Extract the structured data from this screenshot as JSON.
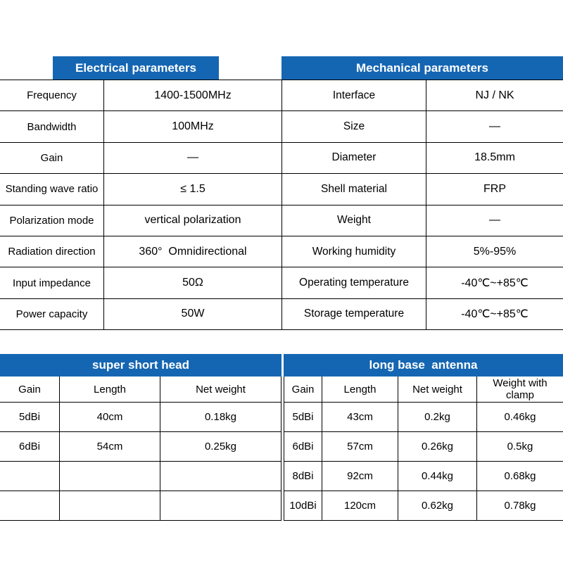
{
  "colors": {
    "header_bg": "#1566b2",
    "header_text": "#ffffff",
    "border": "#000000"
  },
  "electrical": {
    "title": "Electrical parameters",
    "rows": [
      {
        "label": "Frequency",
        "value": "1400-1500MHz"
      },
      {
        "label": "Bandwidth",
        "value": "100MHz"
      },
      {
        "label": "Gain",
        "value": "—"
      },
      {
        "label": "Standing wave ratio",
        "value": "≤ 1.5"
      },
      {
        "label": "Polarization mode",
        "value": "vertical polarization"
      },
      {
        "label": "Radiation direction",
        "value": "360°  Omnidirectional"
      },
      {
        "label": "Input impedance",
        "value": "50Ω"
      },
      {
        "label": "Power capacity",
        "value": "50W"
      }
    ]
  },
  "mechanical": {
    "title": "Mechanical parameters",
    "rows": [
      {
        "label": "Interface",
        "value": "NJ / NK"
      },
      {
        "label": "Size",
        "value": "—"
      },
      {
        "label": "Diameter",
        "value": "18.5mm"
      },
      {
        "label": "Shell material",
        "value": "FRP"
      },
      {
        "label": "Weight",
        "value": "—"
      },
      {
        "label": "Working humidity",
        "value": "5%-95%"
      },
      {
        "label": "Operating temperature",
        "value": "-40℃~+85℃"
      },
      {
        "label": "Storage temperature",
        "value": "-40℃~+85℃"
      }
    ]
  },
  "short_head": {
    "title": "super short head",
    "columns": [
      "Gain",
      "Length",
      "Net weight"
    ],
    "rows": [
      [
        "5dBi",
        "40cm",
        "0.18kg"
      ],
      [
        "6dBi",
        "54cm",
        "0.25kg"
      ],
      [
        "",
        "",
        ""
      ],
      [
        "",
        "",
        ""
      ]
    ]
  },
  "long_base": {
    "title": "long base  antenna",
    "columns": [
      "Gain",
      "Length",
      "Net weight",
      "Weight with clamp"
    ],
    "rows": [
      [
        "5dBi",
        "43cm",
        "0.2kg",
        "0.46kg"
      ],
      [
        "6dBi",
        "57cm",
        "0.26kg",
        "0.5kg"
      ],
      [
        "8dBi",
        "92cm",
        "0.44kg",
        "0.68kg"
      ],
      [
        "10dBi",
        "120cm",
        "0.62kg",
        "0.78kg"
      ]
    ]
  }
}
